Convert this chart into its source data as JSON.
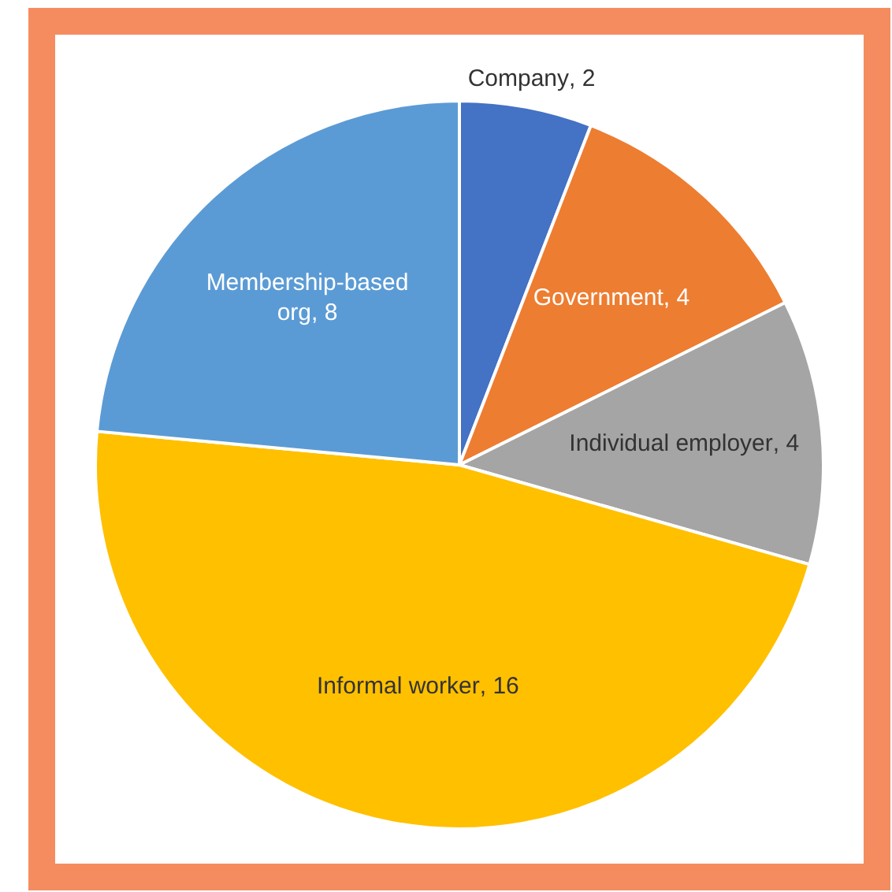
{
  "chart_data": {
    "type": "pie",
    "categories": [
      "Company",
      "Government",
      "Individual employer",
      "Informal worker",
      "Membership-based org"
    ],
    "values": [
      2,
      4,
      4,
      16,
      8
    ],
    "colors": [
      "#4472c4",
      "#ed7d31",
      "#a5a5a5",
      "#ffc000",
      "#5b9bd5"
    ],
    "value_labels": [
      ", 2",
      ", 4",
      ", 4",
      ", 16",
      ", 8"
    ],
    "legend": false
  }
}
